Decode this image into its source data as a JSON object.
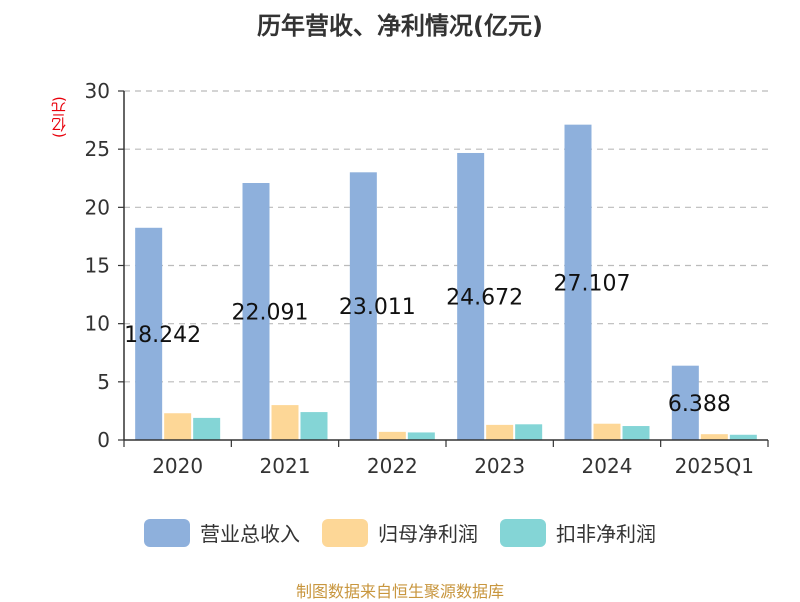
{
  "title": "历年营收、净利情况(亿元)",
  "unit_label": "(亿元)",
  "source": "制图数据来自恒生聚源数据库",
  "colors": {
    "revenue": "#8eb0dc",
    "net_profit": "#fdd797",
    "deducted_net_profit": "#84d5d6",
    "grid": "#bbbbbb",
    "axis": "#333333",
    "unit_text": "#e8000b",
    "source_text": "#c8963e"
  },
  "chart_data": {
    "type": "bar",
    "title": "历年营收、净利情况(亿元)",
    "ylabel": "(亿元)",
    "xlabel": "",
    "categories": [
      "2020",
      "2021",
      "2022",
      "2023",
      "2024",
      "2025Q1"
    ],
    "ylim": [
      0,
      30
    ],
    "yticks": [
      0,
      5,
      10,
      15,
      20,
      25,
      30
    ],
    "grid": true,
    "legend_position": "bottom",
    "series": [
      {
        "name": "营业总收入",
        "values": [
          18.242,
          22.091,
          23.011,
          24.672,
          27.107,
          6.388
        ],
        "labels": [
          "18.242",
          "22.091",
          "23.011",
          "24.672",
          "27.107",
          "6.388"
        ]
      },
      {
        "name": "归母净利润",
        "values": [
          2.3,
          3.0,
          0.7,
          1.3,
          1.4,
          0.5
        ]
      },
      {
        "name": "扣非净利润",
        "values": [
          1.9,
          2.4,
          0.65,
          1.35,
          1.2,
          0.45
        ]
      }
    ]
  }
}
